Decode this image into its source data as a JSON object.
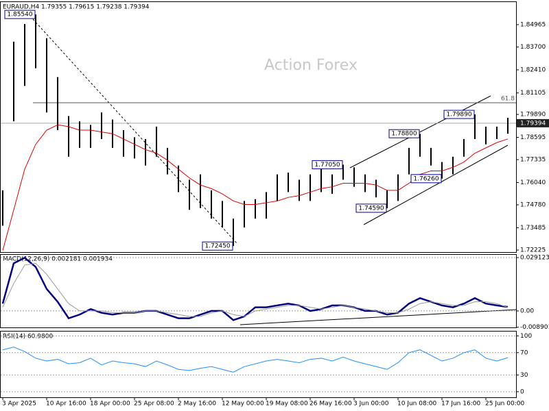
{
  "chart_data": [
    {
      "type": "ohlc",
      "title": "EURAUD,H4  1.79355 1.79615 1.79238 1.79394",
      "watermark": "Action Forex",
      "categories": [
        "3 Apr 2025",
        null,
        null,
        null,
        "10 Apr 16:00",
        null,
        null,
        null,
        "18 Apr 00:00",
        null,
        null,
        null,
        "25 Apr 08:00",
        null,
        null,
        null,
        "2 May 16:00",
        null,
        null,
        null,
        "12 May 00:00",
        null,
        null,
        null,
        "19 May 08:00",
        null,
        null,
        null,
        "26 May 16:00",
        null,
        null,
        null,
        "3 Jun 00:00",
        null,
        null,
        null,
        "10 Jun 08:00",
        null,
        null,
        null,
        "17 Jun 16:00",
        null,
        null,
        null,
        "25 Jun 00:00",
        null,
        null
      ],
      "high": [
        1.756,
        1.84,
        1.85,
        1.8554,
        1.842,
        1.82,
        1.798,
        1.795,
        1.793,
        1.8,
        1.796,
        1.79,
        1.786,
        1.785,
        1.792,
        1.78,
        1.77,
        1.762,
        1.765,
        1.756,
        1.75,
        1.74,
        1.75,
        1.751,
        1.755,
        1.765,
        1.766,
        1.762,
        1.765,
        1.768,
        1.765,
        1.7705,
        1.769,
        1.765,
        1.762,
        1.756,
        1.765,
        1.78,
        1.788,
        1.78,
        1.772,
        1.775,
        1.785,
        1.7989,
        1.792,
        1.792,
        1.797
      ],
      "low": [
        1.736,
        1.795,
        1.815,
        1.825,
        1.8,
        1.79,
        1.775,
        1.78,
        1.78,
        1.785,
        1.78,
        1.775,
        1.774,
        1.77,
        1.775,
        1.765,
        1.755,
        1.745,
        1.746,
        1.74,
        1.735,
        1.7245,
        1.735,
        1.74,
        1.74,
        1.75,
        1.755,
        1.75,
        1.75,
        1.755,
        1.754,
        1.762,
        1.758,
        1.755,
        1.752,
        1.7459,
        1.75,
        1.765,
        1.775,
        1.77,
        1.7626,
        1.765,
        1.775,
        1.785,
        1.782,
        1.785,
        1.788
      ],
      "bar_color": "#000000",
      "series": [
        {
          "color": "#e00000",
          "values": [
            1.722,
            1.745,
            1.768,
            1.782,
            1.79,
            1.793,
            1.792,
            1.79,
            1.79,
            1.789,
            1.788,
            1.785,
            1.782,
            1.779,
            1.777,
            1.773,
            1.768,
            1.763,
            1.759,
            1.757,
            1.754,
            1.75,
            1.748,
            1.748,
            1.749,
            1.75,
            1.752,
            1.753,
            1.755,
            1.757,
            1.758,
            1.76,
            1.76,
            1.76,
            1.759,
            1.756,
            1.756,
            1.76,
            1.765,
            1.767,
            1.767,
            1.769,
            1.772,
            1.777,
            1.78,
            1.783,
            1.785
          ]
        }
      ],
      "annotations": [
        {
          "value": 1.8554,
          "label": "1.85540"
        },
        {
          "value": 1.7245,
          "label": "1.72450"
        },
        {
          "value": 1.7705,
          "label": "1.77050"
        },
        {
          "value": 1.788,
          "label": "1.78800"
        },
        {
          "value": 1.7989,
          "label": "1.79890"
        },
        {
          "value": 1.7626,
          "label": "1.76260"
        },
        {
          "value": 1.7459,
          "label": "1.74590"
        }
      ],
      "level": {
        "value": 1.8055,
        "label": "61.8"
      },
      "current": {
        "value": 1.79394,
        "label": "1.79394"
      },
      "ylim": [
        1.7211,
        1.8628
      ],
      "yticks": [
        {
          "value": 1.84965,
          "label": "1.84965"
        },
        {
          "value": 1.837,
          "label": "1.83700"
        },
        {
          "value": 1.8241,
          "label": "1.82410"
        },
        {
          "value": 1.81105,
          "label": "1.81105"
        },
        {
          "value": 1.7989,
          "label": "1.79890"
        },
        {
          "value": 1.78595,
          "label": "1.78595"
        },
        {
          "value": 1.77335,
          "label": "1.77335"
        },
        {
          "value": 1.7604,
          "label": "1.76040"
        },
        {
          "value": 1.7478,
          "label": "1.74780"
        },
        {
          "value": 1.73485,
          "label": "1.73485"
        },
        {
          "value": 1.72225,
          "label": "1.72225"
        }
      ]
    },
    {
      "type": "line",
      "title": "MACD(12,26,9) 0.002181 0.001934",
      "series": [
        {
          "color": "#000080",
          "values": [
            0.004,
            0.026,
            0.029,
            0.024,
            0.012,
            0.005,
            -0.004,
            -0.002,
            0.001,
            -0.001,
            -0.002,
            -0.001,
            -0.001,
            0.0,
            0.0,
            -0.002,
            -0.004,
            -0.004,
            -0.002,
            0.0,
            0.0,
            -0.005,
            -0.003,
            0.002,
            0.002,
            0.003,
            0.004,
            0.003,
            0.0,
            0.001,
            0.003,
            0.003,
            0.002,
            0.0,
            0.0,
            -0.002,
            -0.001,
            0.004,
            0.007,
            0.005,
            0.003,
            0.002,
            0.004,
            0.007,
            0.004,
            0.003,
            0.002181
          ]
        },
        {
          "color": "#999999",
          "values": [
            0.002,
            0.015,
            0.025,
            0.026,
            0.02,
            0.012,
            0.004,
            0.0,
            0.0,
            0.0,
            -0.001,
            -0.001,
            -0.001,
            0.0,
            0.0,
            -0.001,
            -0.002,
            -0.003,
            -0.003,
            -0.001,
            0.0,
            -0.002,
            -0.003,
            0.0,
            0.001,
            0.002,
            0.003,
            0.003,
            0.002,
            0.001,
            0.002,
            0.003,
            0.002,
            0.001,
            0.0,
            -0.001,
            -0.001,
            0.001,
            0.004,
            0.005,
            0.004,
            0.003,
            0.003,
            0.005,
            0.005,
            0.004,
            0.001934
          ]
        }
      ],
      "ylim": [
        -0.009,
        0.031
      ],
      "yticks": [
        0.029123,
        {
          "value": 0,
          "label": "0.00"
        },
        -0.008901
      ]
    },
    {
      "type": "line",
      "title": "RSI(14) 60.9800",
      "series": [
        {
          "color": "#1e90ff",
          "values": [
            75,
            80,
            72,
            60,
            55,
            58,
            50,
            52,
            60,
            48,
            55,
            52,
            50,
            45,
            55,
            48,
            40,
            38,
            42,
            45,
            40,
            35,
            45,
            50,
            55,
            58,
            55,
            52,
            58,
            60,
            55,
            62,
            55,
            50,
            45,
            40,
            52,
            70,
            75,
            65,
            55,
            60,
            70,
            75,
            60,
            55,
            60.98
          ]
        }
      ],
      "ylim": [
        -10,
        109
      ],
      "yticks": [
        100,
        70,
        30,
        0
      ]
    }
  ]
}
